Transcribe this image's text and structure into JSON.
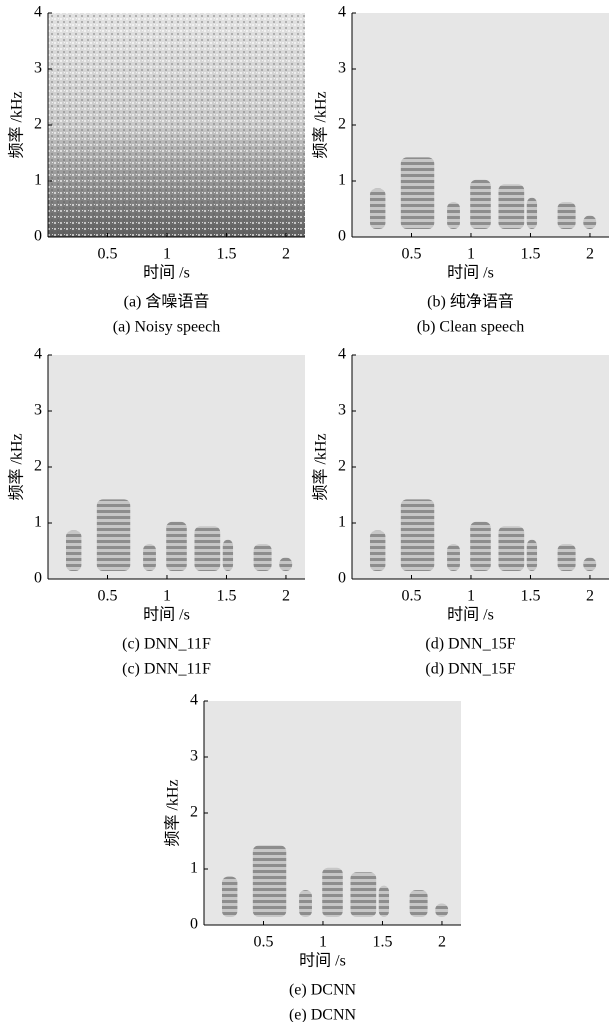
{
  "chart_data": [
    {
      "type": "spectrogram",
      "xlabel": "时间 /s",
      "ylabel": "频率 /kHz",
      "caption_cn": "(a) 含噪语音",
      "caption_en": "(a) Noisy speech",
      "style": "noisy",
      "xlim": [
        0,
        2.16
      ],
      "ylim": [
        0,
        4
      ],
      "xticks": [
        0.5,
        1,
        1.5,
        2
      ],
      "yticks": [
        0,
        1,
        2,
        3,
        4
      ]
    },
    {
      "type": "spectrogram",
      "xlabel": "时间 /s",
      "ylabel": "频率 /kHz",
      "caption_cn": "(b) 纯净语音",
      "caption_en": "(b) Clean speech",
      "style": "clean",
      "xlim": [
        0,
        2.16
      ],
      "ylim": [
        0,
        4
      ],
      "xticks": [
        0.5,
        1,
        1.5,
        2
      ],
      "yticks": [
        0,
        1,
        2,
        3,
        4
      ]
    },
    {
      "type": "spectrogram",
      "xlabel": "时间 /s",
      "ylabel": "频率 /kHz",
      "caption_cn": "(c) DNN_11F",
      "caption_en": "(c) DNN_11F",
      "style": "clean",
      "xlim": [
        0,
        2.16
      ],
      "ylim": [
        0,
        4
      ],
      "xticks": [
        0.5,
        1,
        1.5,
        2
      ],
      "yticks": [
        0,
        1,
        2,
        3,
        4
      ]
    },
    {
      "type": "spectrogram",
      "xlabel": "时间 /s",
      "ylabel": "频率 /kHz",
      "caption_cn": "(d) DNN_15F",
      "caption_en": "(d) DNN_15F",
      "style": "clean",
      "xlim": [
        0,
        2.16
      ],
      "ylim": [
        0,
        4
      ],
      "xticks": [
        0.5,
        1,
        1.5,
        2
      ],
      "yticks": [
        0,
        1,
        2,
        3,
        4
      ]
    },
    {
      "type": "spectrogram",
      "xlabel": "时间 /s",
      "ylabel": "频率 /kHz",
      "caption_cn": "(e) DCNN",
      "caption_en": "(e) DCNN",
      "style": "clean",
      "xlim": [
        0,
        2.16
      ],
      "ylim": [
        0,
        4
      ],
      "xticks": [
        0.5,
        1,
        1.5,
        2
      ],
      "yticks": [
        0,
        1,
        2,
        3,
        4
      ]
    }
  ]
}
